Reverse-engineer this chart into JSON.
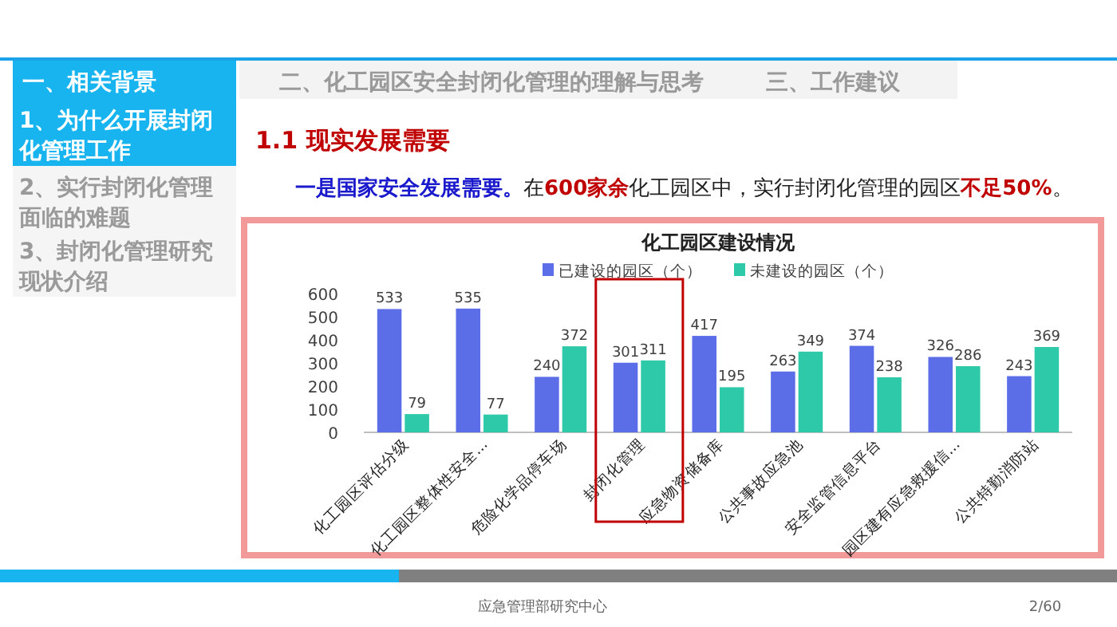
{
  "chart_data": {
    "type": "bar",
    "title": "化工园区建设情况",
    "categories": [
      "化工园区评估分级",
      "化工园区整体性安全...",
      "危险化学品停车场",
      "封闭化管理",
      "应急物资储备库",
      "公共事故应急池",
      "安全监管信息平台",
      "园区建有应急救援信...",
      "公共特勤消防站"
    ],
    "series": [
      {
        "name": "已建设的园区（个）",
        "color": "#5b6ee8",
        "values": [
          533,
          535,
          240,
          301,
          417,
          263,
          374,
          326,
          243
        ]
      },
      {
        "name": "未建设的园区（个）",
        "color": "#2ec9a8",
        "values": [
          79,
          77,
          372,
          311,
          195,
          349,
          238,
          286,
          369
        ]
      }
    ],
    "ylim": [
      0,
      600
    ],
    "yticks": [
      0,
      100,
      200,
      300,
      400,
      500,
      600
    ],
    "grid": false,
    "legend": "top",
    "data_labels": true,
    "annotations": [
      "一、相关背景",
      "1、为什么开展封闭化管理工作",
      "2、实行封闭化管理面临的难题",
      "3、封闭化管理研究现状介绍",
      "二、化工园区安全封闭化管理的理解与思考",
      "三、工作建议",
      "1.1 现实发展需要",
      "一是国家安全发展需要。",
      "在",
      "600家余",
      "化工园区中，实行封闭化管理的园区",
      "不足50%",
      "。",
      "应急管理部研究中心",
      "2/60"
    ]
  }
}
